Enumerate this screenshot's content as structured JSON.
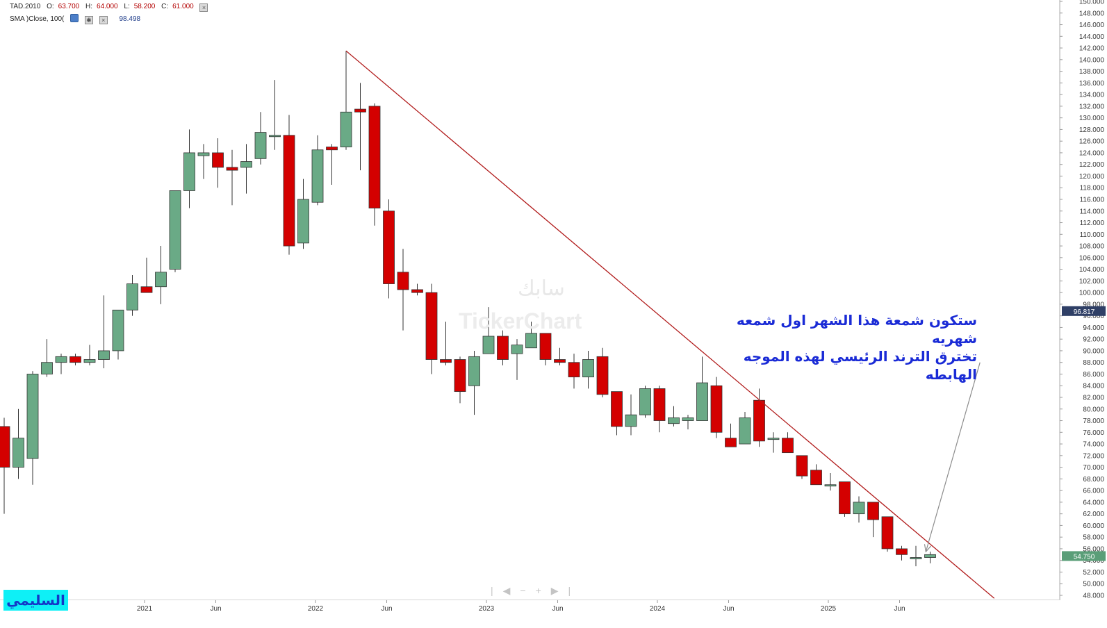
{
  "legend": {
    "symbol": "TAD.2010",
    "open_label": "O:",
    "open": "63.700",
    "high_label": "H:",
    "high": "64.000",
    "low_label": "L:",
    "low": "58.200",
    "close_label": "C:",
    "close": "61.000",
    "sma_label": "SMA  )Close, 100(",
    "sma_value": "98.498"
  },
  "watermark": {
    "arabic": "سابك",
    "english": "TickerChart"
  },
  "annotation": {
    "line1": "ستكون شمعة هذا الشهر اول شمعه شهريه",
    "line2": "تخترق الترند الرئيسي لهذه الموجه الهابطه"
  },
  "author_badge": "السليمي",
  "nav_controls": "|◀−+▶|",
  "price_badges": {
    "sma": {
      "value": "96.817",
      "color": "#2f3f66"
    },
    "last": {
      "value": "54.750",
      "color": "#5a9e78"
    }
  },
  "colors": {
    "up": "#6aaa86",
    "down": "#d40000",
    "trendline": "#b11b1b",
    "arrow": "#8c8c8c"
  },
  "chart_data": {
    "type": "candlestick",
    "interval": "monthly",
    "y_axis": {
      "min": 48,
      "max": 150,
      "step": 2,
      "decimals": 3,
      "position": "right"
    },
    "x_axis_labels": [
      {
        "label": "2021",
        "index": 10
      },
      {
        "label": "Jun",
        "index": 15
      },
      {
        "label": "2022",
        "index": 22
      },
      {
        "label": "Jun",
        "index": 27
      },
      {
        "label": "2023",
        "index": 34
      },
      {
        "label": "Jun",
        "index": 39
      },
      {
        "label": "2024",
        "index": 46
      },
      {
        "label": "Jun",
        "index": 51
      },
      {
        "label": "2025",
        "index": 58
      },
      {
        "label": "Jun",
        "index": 63
      }
    ],
    "candles": [
      {
        "o": 77.0,
        "h": 78.5,
        "l": 62.0,
        "c": 70.0
      },
      {
        "o": 70.0,
        "h": 80.0,
        "l": 68.0,
        "c": 75.0
      },
      {
        "o": 71.5,
        "h": 86.5,
        "l": 67.0,
        "c": 86.0
      },
      {
        "o": 86.0,
        "h": 92.0,
        "l": 85.5,
        "c": 88.0
      },
      {
        "o": 88.0,
        "h": 89.5,
        "l": 86.0,
        "c": 89.0
      },
      {
        "o": 89.0,
        "h": 89.5,
        "l": 87.5,
        "c": 88.0
      },
      {
        "o": 88.0,
        "h": 91.0,
        "l": 87.5,
        "c": 88.5
      },
      {
        "o": 88.5,
        "h": 99.5,
        "l": 87.0,
        "c": 90.0
      },
      {
        "o": 90.0,
        "h": 97.0,
        "l": 88.5,
        "c": 97.0
      },
      {
        "o": 97.0,
        "h": 103.0,
        "l": 96.0,
        "c": 101.5
      },
      {
        "o": 101.0,
        "h": 106.0,
        "l": 100.0,
        "c": 100.0
      },
      {
        "o": 101.0,
        "h": 108.0,
        "l": 98.0,
        "c": 103.5
      },
      {
        "o": 104.0,
        "h": 117.5,
        "l": 103.5,
        "c": 117.5
      },
      {
        "o": 117.5,
        "h": 128.0,
        "l": 114.5,
        "c": 124.0
      },
      {
        "o": 123.5,
        "h": 125.5,
        "l": 119.5,
        "c": 124.0
      },
      {
        "o": 124.0,
        "h": 126.5,
        "l": 118.0,
        "c": 121.5
      },
      {
        "o": 121.5,
        "h": 124.5,
        "l": 115.0,
        "c": 121.0
      },
      {
        "o": 121.5,
        "h": 125.5,
        "l": 117.0,
        "c": 122.5
      },
      {
        "o": 123.0,
        "h": 131.0,
        "l": 122.0,
        "c": 127.5
      },
      {
        "o": 127.0,
        "h": 136.5,
        "l": 124.5,
        "c": 127.0
      },
      {
        "o": 127.0,
        "h": 130.5,
        "l": 106.5,
        "c": 108.0
      },
      {
        "o": 108.5,
        "h": 119.5,
        "l": 107.5,
        "c": 116.0
      },
      {
        "o": 115.5,
        "h": 127.0,
        "l": 115.0,
        "c": 124.5
      },
      {
        "o": 125.0,
        "h": 125.5,
        "l": 118.5,
        "c": 124.5
      },
      {
        "o": 125.0,
        "h": 141.5,
        "l": 124.5,
        "c": 131.0
      },
      {
        "o": 131.5,
        "h": 136.0,
        "l": 121.0,
        "c": 131.0
      },
      {
        "o": 132.0,
        "h": 132.5,
        "l": 111.5,
        "c": 114.5
      },
      {
        "o": 114.0,
        "h": 116.0,
        "l": 99.0,
        "c": 101.5
      },
      {
        "o": 103.5,
        "h": 107.5,
        "l": 93.5,
        "c": 100.5
      },
      {
        "o": 100.5,
        "h": 101.5,
        "l": 99.5,
        "c": 100.0
      },
      {
        "o": 100.0,
        "h": 101.5,
        "l": 86.0,
        "c": 88.5
      },
      {
        "o": 88.5,
        "h": 95.0,
        "l": 87.5,
        "c": 88.0
      },
      {
        "o": 88.5,
        "h": 89.0,
        "l": 81.0,
        "c": 83.0
      },
      {
        "o": 84.0,
        "h": 90.0,
        "l": 79.0,
        "c": 89.0
      },
      {
        "o": 89.5,
        "h": 97.5,
        "l": 89.5,
        "c": 92.5
      },
      {
        "o": 92.5,
        "h": 93.5,
        "l": 87.5,
        "c": 88.5
      },
      {
        "o": 89.5,
        "h": 92.0,
        "l": 85.0,
        "c": 91.0
      },
      {
        "o": 90.5,
        "h": 95.0,
        "l": 90.5,
        "c": 93.0
      },
      {
        "o": 93.0,
        "h": 93.0,
        "l": 87.5,
        "c": 88.5
      },
      {
        "o": 88.5,
        "h": 90.5,
        "l": 87.5,
        "c": 88.0
      },
      {
        "o": 88.0,
        "h": 89.5,
        "l": 83.5,
        "c": 85.5
      },
      {
        "o": 85.5,
        "h": 90.0,
        "l": 83.5,
        "c": 88.5
      },
      {
        "o": 89.0,
        "h": 90.5,
        "l": 82.0,
        "c": 82.5
      },
      {
        "o": 83.0,
        "h": 83.0,
        "l": 75.5,
        "c": 77.0
      },
      {
        "o": 77.0,
        "h": 82.5,
        "l": 75.5,
        "c": 79.0
      },
      {
        "o": 79.0,
        "h": 84.0,
        "l": 78.5,
        "c": 83.5
      },
      {
        "o": 83.5,
        "h": 84.0,
        "l": 76.0,
        "c": 78.0
      },
      {
        "o": 77.5,
        "h": 80.5,
        "l": 77.0,
        "c": 78.5
      },
      {
        "o": 78.0,
        "h": 79.0,
        "l": 76.5,
        "c": 78.5
      },
      {
        "o": 78.0,
        "h": 89.0,
        "l": 78.0,
        "c": 84.5
      },
      {
        "o": 84.0,
        "h": 85.5,
        "l": 75.0,
        "c": 76.0
      },
      {
        "o": 75.0,
        "h": 77.5,
        "l": 73.5,
        "c": 73.5
      },
      {
        "o": 74.0,
        "h": 79.5,
        "l": 74.0,
        "c": 78.5
      },
      {
        "o": 81.5,
        "h": 83.5,
        "l": 73.5,
        "c": 74.5
      },
      {
        "o": 75.0,
        "h": 76.0,
        "l": 72.5,
        "c": 75.0
      },
      {
        "o": 75.0,
        "h": 76.0,
        "l": 72.5,
        "c": 72.5
      },
      {
        "o": 72.0,
        "h": 71.0,
        "l": 68.0,
        "c": 68.5
      },
      {
        "o": 69.5,
        "h": 70.5,
        "l": 67.0,
        "c": 67.0
      },
      {
        "o": 67.0,
        "h": 69.0,
        "l": 66.0,
        "c": 67.0
      },
      {
        "o": 67.5,
        "h": 67.5,
        "l": 61.5,
        "c": 62.0
      },
      {
        "o": 62.0,
        "h": 65.0,
        "l": 60.5,
        "c": 64.0
      },
      {
        "o": 64.0,
        "h": 64.0,
        "l": 58.0,
        "c": 61.0
      },
      {
        "o": 61.5,
        "h": 61.5,
        "l": 55.5,
        "c": 56.0
      },
      {
        "o": 56.0,
        "h": 56.5,
        "l": 54.0,
        "c": 55.0
      },
      {
        "o": 54.5,
        "h": 56.5,
        "l": 53.0,
        "c": 54.5
      },
      {
        "o": 54.5,
        "h": 55.5,
        "l": 53.5,
        "c": 55.0
      }
    ],
    "trendline": {
      "from": {
        "index": 24,
        "price": 141.5
      },
      "to": {
        "index": 69.5,
        "price": 47.5
      }
    },
    "arrow": {
      "from": {
        "index": 68.5,
        "price": 88.0
      },
      "to": {
        "index": 64.7,
        "price": 55.5
      }
    }
  }
}
